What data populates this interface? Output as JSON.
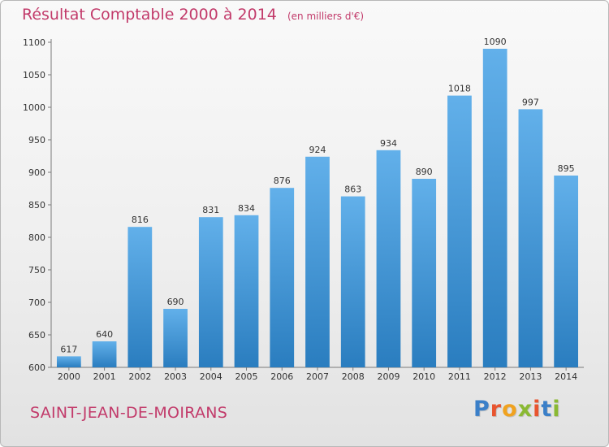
{
  "title": {
    "main": "Résultat Comptable 2000 à 2014",
    "unit_note": "(en milliers d'€)"
  },
  "commune": "SAINT-JEAN-DE-MOIRANS",
  "logo": {
    "text": "Proxiti",
    "letter_colors": [
      "#3a7fc8",
      "#e8542f",
      "#f0a21f",
      "#8ab933",
      "#e8542f",
      "#3a7fc8",
      "#8ab933"
    ]
  },
  "colors": {
    "bar_top": "#62b0ea",
    "bar_bottom": "#2a7dbf",
    "title": "#c23a6a",
    "text": "#333333"
  },
  "chart_data": {
    "type": "bar",
    "title": "Résultat Comptable 2000 à 2014",
    "subtitle": "(en milliers d'€)",
    "xlabel": "",
    "ylabel": "",
    "categories": [
      "2000",
      "2001",
      "2002",
      "2003",
      "2004",
      "2005",
      "2006",
      "2007",
      "2008",
      "2009",
      "2010",
      "2011",
      "2012",
      "2013",
      "2014"
    ],
    "values": [
      617,
      640,
      816,
      690,
      831,
      834,
      876,
      924,
      863,
      934,
      890,
      1018,
      1090,
      997,
      895
    ],
    "ylim": [
      600,
      1100
    ],
    "yticks": [
      600,
      650,
      700,
      750,
      800,
      850,
      900,
      950,
      1000,
      1050,
      1100
    ],
    "grid": false,
    "legend": "none"
  }
}
